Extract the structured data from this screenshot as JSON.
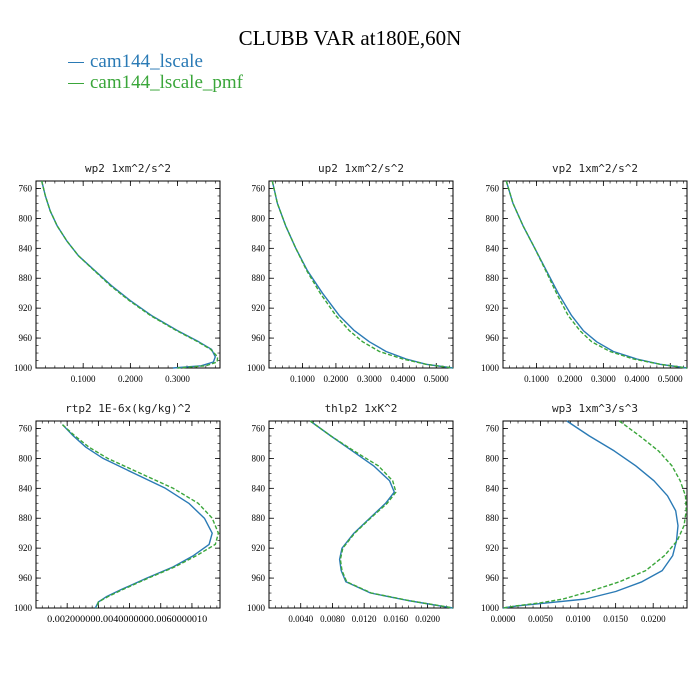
{
  "title": "CLUBB VAR at180E,60N",
  "legend": [
    {
      "label": "cam144_lscale",
      "color": "#2a7ab5"
    },
    {
      "label": "cam144_lscale_pmf",
      "color": "#3aa63a"
    }
  ],
  "chart_data": [
    {
      "type": "line",
      "title": "wp2  1xm^2/s^2",
      "xlim": [
        0.0,
        0.39
      ],
      "ylim": [
        750,
        1000
      ],
      "x_ticks": [
        0.1,
        0.2,
        0.3
      ],
      "x_tick_labels": [
        "0.1000",
        "0.2000",
        "0.3000"
      ],
      "y_ticks": [
        760,
        800,
        840,
        880,
        920,
        960,
        1000
      ],
      "y_tick_labels": [
        "760",
        "800",
        "840",
        "880",
        "920",
        "960",
        "1000"
      ],
      "series": [
        {
          "name": "cam144_lscale",
          "y": [
            750,
            770,
            790,
            810,
            830,
            850,
            870,
            890,
            910,
            930,
            950,
            965,
            975,
            985,
            992,
            997,
            1000
          ],
          "x": [
            0.012,
            0.02,
            0.03,
            0.045,
            0.065,
            0.09,
            0.125,
            0.16,
            0.2,
            0.245,
            0.3,
            0.345,
            0.372,
            0.38,
            0.376,
            0.35,
            0.29
          ]
        },
        {
          "name": "cam144_lscale_pmf",
          "y": [
            750,
            770,
            790,
            810,
            830,
            850,
            870,
            890,
            910,
            930,
            950,
            965,
            975,
            985,
            992,
            997,
            1000
          ],
          "x": [
            0.012,
            0.02,
            0.03,
            0.045,
            0.065,
            0.09,
            0.124,
            0.158,
            0.198,
            0.243,
            0.298,
            0.343,
            0.37,
            0.385,
            0.384,
            0.36,
            0.3
          ]
        }
      ]
    },
    {
      "type": "line",
      "title": "up2  1xm^2/s^2",
      "xlim": [
        0.0,
        0.55
      ],
      "ylim": [
        750,
        1000
      ],
      "x_ticks": [
        0.1,
        0.2,
        0.3,
        0.4,
        0.5
      ],
      "x_tick_labels": [
        "0.1000",
        "0.2000",
        "0.3000",
        "0.4000",
        "0.5000"
      ],
      "y_ticks": [
        760,
        800,
        840,
        880,
        920,
        960,
        1000
      ],
      "y_tick_labels": [
        "760",
        "800",
        "840",
        "880",
        "920",
        "960",
        "1000"
      ],
      "series": [
        {
          "name": "cam144_lscale",
          "y": [
            750,
            780,
            810,
            840,
            870,
            900,
            930,
            950,
            965,
            978,
            988,
            995,
            1000
          ],
          "x": [
            0.01,
            0.025,
            0.05,
            0.08,
            0.115,
            0.16,
            0.21,
            0.255,
            0.3,
            0.35,
            0.41,
            0.47,
            0.55
          ]
        },
        {
          "name": "cam144_lscale_pmf",
          "y": [
            750,
            780,
            810,
            840,
            870,
            900,
            930,
            950,
            965,
            978,
            988,
            995,
            1000
          ],
          "x": [
            0.01,
            0.025,
            0.05,
            0.08,
            0.113,
            0.153,
            0.2,
            0.24,
            0.28,
            0.33,
            0.4,
            0.47,
            0.55
          ]
        }
      ]
    },
    {
      "type": "line",
      "title": "vp2  1xm^2/s^2",
      "xlim": [
        0.0,
        0.55
      ],
      "ylim": [
        750,
        1000
      ],
      "x_ticks": [
        0.1,
        0.2,
        0.3,
        0.4,
        0.5
      ],
      "x_tick_labels": [
        "0.1000",
        "0.2000",
        "0.3000",
        "0.4000",
        "0.5000"
      ],
      "y_ticks": [
        760,
        800,
        840,
        880,
        920,
        960,
        1000
      ],
      "y_tick_labels": [
        "760",
        "800",
        "840",
        "880",
        "920",
        "960",
        "1000"
      ],
      "series": [
        {
          "name": "cam144_lscale",
          "y": [
            750,
            780,
            810,
            840,
            870,
            900,
            930,
            950,
            965,
            978,
            988,
            995,
            1000
          ],
          "x": [
            0.01,
            0.03,
            0.06,
            0.095,
            0.13,
            0.165,
            0.205,
            0.24,
            0.28,
            0.33,
            0.4,
            0.47,
            0.55
          ]
        },
        {
          "name": "cam144_lscale_pmf",
          "y": [
            750,
            780,
            810,
            840,
            870,
            900,
            930,
            950,
            965,
            978,
            988,
            995,
            1000
          ],
          "x": [
            0.01,
            0.03,
            0.06,
            0.095,
            0.128,
            0.16,
            0.195,
            0.23,
            0.265,
            0.32,
            0.39,
            0.47,
            0.55
          ]
        }
      ]
    },
    {
      "type": "line",
      "title": "rtp2  1E-6x(kg/kg)^2",
      "xlim": [
        0.0,
        0.0118
      ],
      "ylim": [
        750,
        1000
      ],
      "x_ticks": [
        0.002,
        0.004,
        0.006,
        0.008,
        0.01
      ],
      "x_tick_labels": [
        "0.00200000001",
        "0.00400000002",
        "0.00600000001",
        "0.008",
        "0.01"
      ],
      "x_tick_label_text": "0.002000000.0040000000.0060000010",
      "y_ticks": [
        760,
        800,
        840,
        880,
        920,
        960,
        1000
      ],
      "y_tick_labels": [
        "760",
        "800",
        "840",
        "880",
        "920",
        "960",
        "1000"
      ],
      "series": [
        {
          "name": "cam144_lscale",
          "y": [
            755,
            770,
            785,
            800,
            820,
            840,
            860,
            880,
            900,
            915,
            930,
            945,
            960,
            975,
            985,
            992,
            1000
          ],
          "x": [
            0.0017,
            0.0024,
            0.0032,
            0.0043,
            0.0063,
            0.0083,
            0.0098,
            0.0108,
            0.0113,
            0.0111,
            0.0101,
            0.0088,
            0.0071,
            0.0055,
            0.0045,
            0.004,
            0.0038
          ]
        },
        {
          "name": "cam144_lscale_pmf",
          "y": [
            755,
            770,
            785,
            800,
            820,
            840,
            860,
            880,
            900,
            915,
            930,
            945,
            960,
            975,
            985,
            992,
            1000
          ],
          "x": [
            0.0017,
            0.0025,
            0.0034,
            0.0046,
            0.0067,
            0.0088,
            0.0104,
            0.0113,
            0.0117,
            0.0115,
            0.0103,
            0.0089,
            0.0072,
            0.0056,
            0.0046,
            0.004,
            0.0039
          ]
        }
      ]
    },
    {
      "type": "line",
      "title": "thlp2  1xK^2",
      "xlim": [
        0.0,
        0.0232
      ],
      "ylim": [
        750,
        1000
      ],
      "x_ticks": [
        0.004,
        0.008,
        0.012,
        0.016,
        0.02
      ],
      "x_tick_labels": [
        "0.0040",
        "0.0080",
        "0.0120",
        "0.0160",
        "0.0200"
      ],
      "y_ticks": [
        760,
        800,
        840,
        880,
        920,
        960,
        1000
      ],
      "y_tick_labels": [
        "760",
        "800",
        "840",
        "880",
        "920",
        "960",
        "1000"
      ],
      "series": [
        {
          "name": "cam144_lscale",
          "y": [
            750,
            770,
            790,
            810,
            830,
            845,
            860,
            880,
            900,
            920,
            935,
            950,
            965,
            980,
            990,
            997,
            1000
          ],
          "x": [
            0.0052,
            0.0078,
            0.0105,
            0.0132,
            0.0152,
            0.0158,
            0.0147,
            0.0127,
            0.0107,
            0.0092,
            0.0089,
            0.0091,
            0.0097,
            0.0128,
            0.0175,
            0.0215,
            0.0232
          ]
        },
        {
          "name": "cam144_lscale_pmf",
          "y": [
            750,
            770,
            790,
            810,
            830,
            845,
            860,
            880,
            900,
            920,
            935,
            950,
            965,
            980,
            990,
            997,
            1000
          ],
          "x": [
            0.0052,
            0.0078,
            0.0107,
            0.0138,
            0.0156,
            0.016,
            0.0149,
            0.0128,
            0.0108,
            0.0093,
            0.009,
            0.0092,
            0.0098,
            0.0129,
            0.0176,
            0.0216,
            0.0232
          ]
        }
      ]
    },
    {
      "type": "line",
      "title": "wp3  1xm^3/s^3",
      "xlim": [
        0.0,
        0.0245
      ],
      "ylim": [
        750,
        1000
      ],
      "x_ticks": [
        0.0,
        0.005,
        0.01,
        0.015,
        0.02
      ],
      "x_tick_labels": [
        "0.0000",
        "0.0050",
        "0.0100",
        "0.0150",
        "0.0200"
      ],
      "y_ticks": [
        760,
        800,
        840,
        880,
        920,
        960,
        1000
      ],
      "y_tick_labels": [
        "760",
        "800",
        "840",
        "880",
        "920",
        "960",
        "1000"
      ],
      "series": [
        {
          "name": "cam144_lscale",
          "y": [
            750,
            770,
            790,
            810,
            830,
            850,
            870,
            890,
            910,
            930,
            950,
            965,
            978,
            988,
            993,
            997,
            1000
          ],
          "x": [
            0.0085,
            0.0115,
            0.0148,
            0.0177,
            0.0201,
            0.0219,
            0.023,
            0.0233,
            0.0231,
            0.0226,
            0.0212,
            0.0185,
            0.015,
            0.011,
            0.006,
            0.002,
            0.0
          ]
        },
        {
          "name": "cam144_lscale_pmf",
          "y": [
            750,
            770,
            790,
            810,
            830,
            850,
            870,
            890,
            910,
            930,
            950,
            965,
            978,
            988,
            993,
            997,
            1000
          ],
          "x": [
            0.0155,
            0.0182,
            0.0207,
            0.0225,
            0.0236,
            0.0243,
            0.0244,
            0.0241,
            0.0232,
            0.0215,
            0.019,
            0.0155,
            0.0115,
            0.008,
            0.005,
            0.0018,
            0.0
          ]
        }
      ]
    }
  ]
}
